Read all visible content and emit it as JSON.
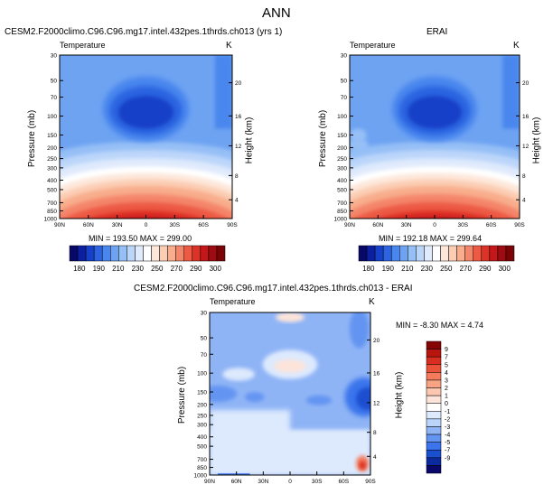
{
  "figure_title": "ANN",
  "colors": {
    "scale": [
      "#08086b",
      "#0b1fa0",
      "#1740c8",
      "#2c63e0",
      "#4a86ee",
      "#6ea3f2",
      "#96bff6",
      "#bcd6fa",
      "#dfeafc",
      "#ffffff",
      "#fde7da",
      "#fbcdb4",
      "#f8ad8c",
      "#f4856a",
      "#ec5a44",
      "#dd3227",
      "#c3171a",
      "#9e0b10",
      "#7a0306"
    ],
    "diff_scale": [
      "#08086b",
      "#0b2a9e",
      "#1a4fd0",
      "#3b74ec",
      "#6494f2",
      "#8fb4f6",
      "#bcd3fa",
      "#dde9fd",
      "#ffffff",
      "#fde4da",
      "#fbc7b1",
      "#f8a484",
      "#f47c5d",
      "#ea523a",
      "#d82e21",
      "#b8150f",
      "#850507"
    ]
  },
  "chart_data": [
    {
      "type": "heatmap",
      "title": "CESM2.F2000climo.C96.C96.mg17.intel.432pes.1thrds.ch013 (yrs 1)",
      "variable": "Temperature",
      "units": "K",
      "ylabel": "Pressure (mb)",
      "ylabel_right": "Height (km)",
      "x_ticks": [
        "90N",
        "60N",
        "30N",
        "0",
        "30S",
        "60S",
        "90S"
      ],
      "y_ticks": [
        "30",
        "50",
        "70",
        "100",
        "150",
        "200",
        "250",
        "300",
        "400",
        "500",
        "700",
        "850",
        "1000"
      ],
      "height_ticks": [
        "20",
        "16",
        "12",
        "8",
        "4"
      ],
      "min": "193.50",
      "max": "299.00",
      "stats_text": "MIN = 193.50  MAX = 299.00",
      "colorbar_labels": [
        "180",
        "190",
        "210",
        "230",
        "250",
        "270",
        "290",
        "300"
      ]
    },
    {
      "type": "heatmap",
      "title": "ERAI",
      "variable": "Temperature",
      "units": "K",
      "ylabel": "Pressure (mb)",
      "ylabel_right": "Height (km)",
      "x_ticks": [
        "90N",
        "60N",
        "30N",
        "0",
        "30S",
        "60S",
        "90S"
      ],
      "y_ticks": [
        "30",
        "50",
        "70",
        "100",
        "150",
        "200",
        "250",
        "300",
        "400",
        "500",
        "700",
        "850",
        "1000"
      ],
      "height_ticks": [
        "20",
        "16",
        "12",
        "8",
        "4"
      ],
      "min": "192.18",
      "max": "299.64",
      "stats_text": "MIN = 192.18  MAX = 299.64",
      "colorbar_labels": [
        "180",
        "190",
        "210",
        "230",
        "250",
        "270",
        "290",
        "300"
      ]
    },
    {
      "type": "heatmap",
      "title": "CESM2.F2000climo.C96.C96.mg17.intel.432pes.1thrds.ch013 - ERAI",
      "variable": "Temperature",
      "units": "K",
      "ylabel": "Pressure (mb)",
      "ylabel_right": "Height (km)",
      "x_ticks": [
        "90N",
        "60N",
        "30N",
        "0",
        "30S",
        "60S",
        "90S"
      ],
      "y_ticks": [
        "30",
        "50",
        "70",
        "100",
        "150",
        "200",
        "250",
        "300",
        "400",
        "500",
        "700",
        "850",
        "1000"
      ],
      "height_ticks": [
        "20",
        "16",
        "12",
        "8",
        "4"
      ],
      "min": "-8.30",
      "max": "4.74",
      "stats_text": "MIN = -8.30  MAX =  4.74",
      "colorbar_labels": [
        "9",
        "7",
        "5",
        "4",
        "3",
        "2",
        "1",
        "0",
        "-1",
        "-2",
        "-3",
        "-4",
        "-5",
        "-7",
        "-9"
      ]
    }
  ]
}
